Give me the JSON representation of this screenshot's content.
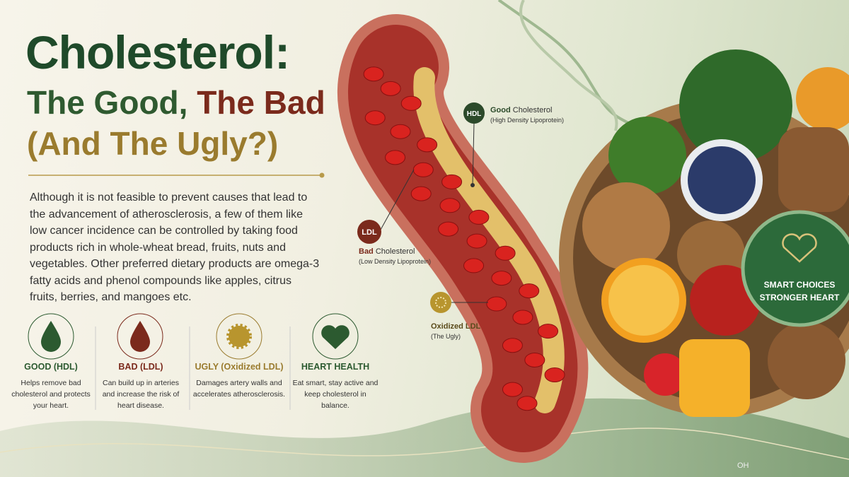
{
  "header": {
    "line1": "Cholesterol:",
    "line2_good": "The Good,",
    "line2_bad": "The Bad",
    "line3": "(And The Ugly?)"
  },
  "intro": "Although it is not feasible to prevent causes that lead to the advancement of atherosclerosis, a few of them like low cancer incidence can be controlled by taking food products rich in whole-wheat bread, fruits, nuts and vegetables. Other preferred dietary products are omega-3 fatty acids and phenol compounds like apples, citrus fruits, berries, and mangoes etc.",
  "callouts": [
    {
      "badge": "HDL",
      "strong": "Good",
      "rest": "Cholesterol",
      "sub": "(High Density Lipoprotein)"
    },
    {
      "badge": "LDL",
      "strong": "Bad",
      "rest": "Cholesterol",
      "sub": "(Low Density Lipoprotein)"
    },
    {
      "title": "Oxidized LDL",
      "sub": "(The Ugly)"
    }
  ],
  "cards": [
    {
      "title": "GOOD (HDL)",
      "text": "Helps remove bad cholesterol and protects your heart."
    },
    {
      "title": "BAD (LDL)",
      "text": "Can build up in arteries and increase the risk of heart disease."
    },
    {
      "title": "UGLY (Oxidized LDL)",
      "text": "Damages artery walls and accelerates atherosclerosis."
    },
    {
      "title": "HEART HEALTH",
      "text": "Eat smart, stay active and keep cholesterol in balance."
    }
  ],
  "badge": {
    "line1": "SMART CHOICES",
    "line2": "STRONGER HEART"
  },
  "molecule": {
    "label": "OH"
  }
}
